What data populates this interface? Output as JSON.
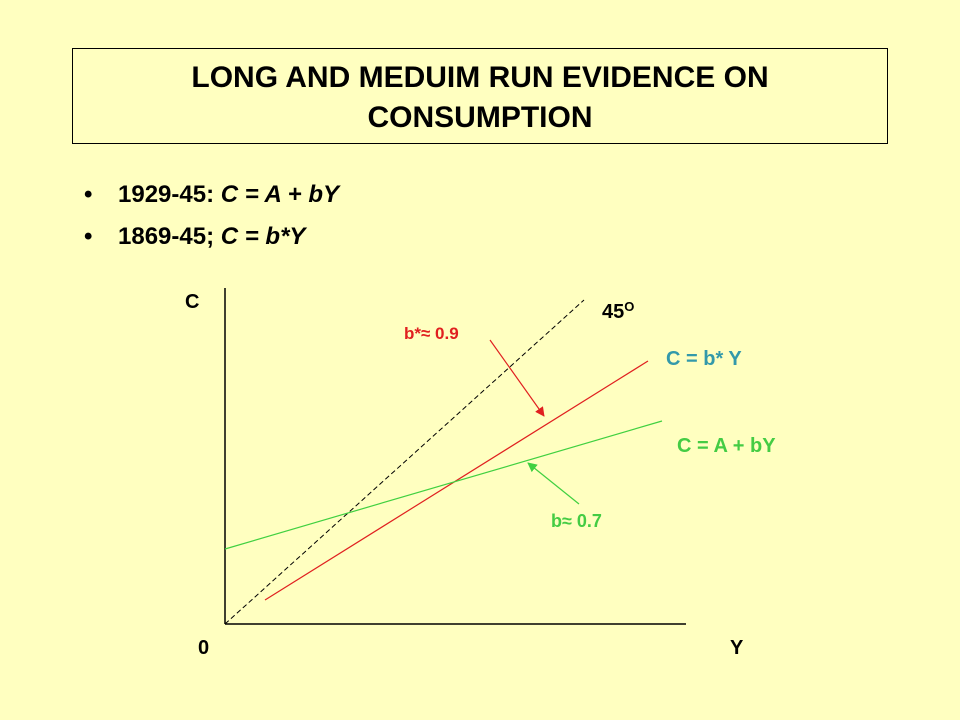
{
  "title": {
    "line1": "LONG AND MEDUIM RUN EVIDENCE ON",
    "line2": "CONSUMPTION"
  },
  "bullets": [
    {
      "bullet": "•",
      "period": "1929-45: ",
      "formula": "C = A + bY"
    },
    {
      "bullet": "•",
      "period": "1869-45; ",
      "formula": "C = b*Y"
    }
  ],
  "diagram": {
    "axis_y_label": "C",
    "axis_x_label": "Y",
    "origin_label": "0",
    "angle_label": "45",
    "angle_unit": "O",
    "long_run_line_label": "C = b* Y",
    "short_run_line_label": "C = A + bY",
    "long_run_slope_label": "b*≈ 0.9",
    "short_run_slope_label": "b≈ 0.7",
    "colors": {
      "background": "#FFFFC0",
      "axes": "#000000",
      "long_run": "#E02020",
      "short_run": "#40D040",
      "long_run_text": "#3399AA",
      "short_run_text": "#44CC44"
    }
  }
}
